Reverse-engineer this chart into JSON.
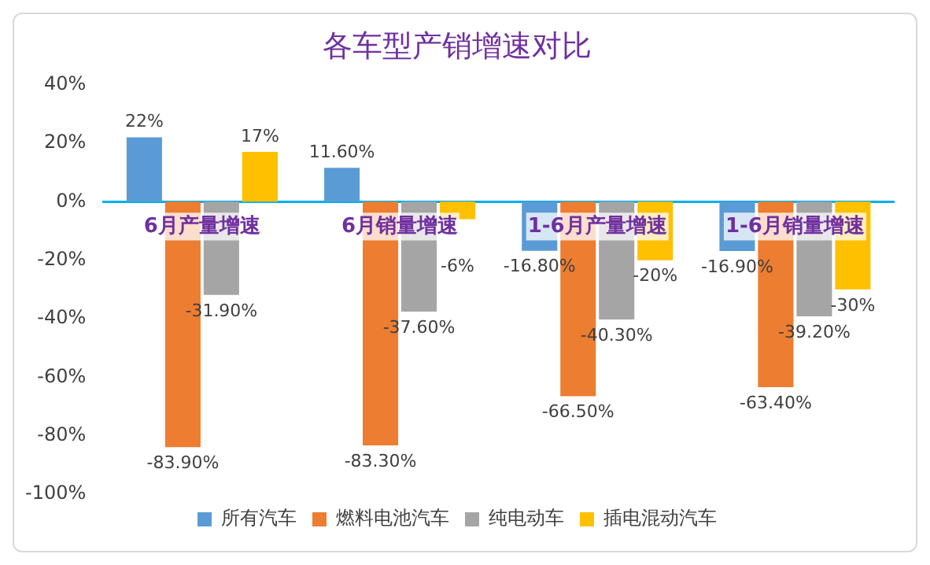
{
  "chart_data": {
    "type": "bar",
    "title": "各车型产销增速对比",
    "categories": [
      "6月产量增速",
      "6月销量增速",
      "1-6月产量增速",
      "1-6月销量增速"
    ],
    "series": [
      {
        "name": "所有汽车",
        "color": "#5b9bd5",
        "values": [
          22,
          11.6,
          -16.8,
          -16.9
        ],
        "value_labels": [
          "22%",
          "11.60%",
          "-16.80%",
          "-16.90%"
        ]
      },
      {
        "name": "燃料电池汽车",
        "color": "#ed7d31",
        "values": [
          -83.9,
          -83.3,
          -66.5,
          -63.4
        ],
        "value_labels": [
          "-83.90%",
          "-83.30%",
          "-66.50%",
          "-63.40%"
        ]
      },
      {
        "name": "纯电动车",
        "color": "#a5a5a5",
        "values": [
          -31.9,
          -37.6,
          -40.3,
          -39.2
        ],
        "value_labels": [
          "-31.90%",
          "-37.60%",
          "-40.30%",
          "-39.20%"
        ]
      },
      {
        "name": "插电混动汽车",
        "color": "#ffc000",
        "values": [
          17,
          -6,
          -20,
          -30
        ],
        "value_labels": [
          "17%",
          "-6%",
          "-20%",
          "-30%"
        ]
      }
    ],
    "ylim": [
      -100,
      40
    ],
    "yticks": [
      {
        "value": 40,
        "label": "40%"
      },
      {
        "value": 20,
        "label": "20%"
      },
      {
        "value": 0,
        "label": "0%"
      },
      {
        "value": -20,
        "label": "-20%"
      },
      {
        "value": -40,
        "label": "-40%"
      },
      {
        "value": -60,
        "label": "-60%"
      },
      {
        "value": -80,
        "label": "-80%"
      },
      {
        "value": -100,
        "label": "-100%"
      }
    ],
    "grid": false,
    "legend": "bottom"
  }
}
